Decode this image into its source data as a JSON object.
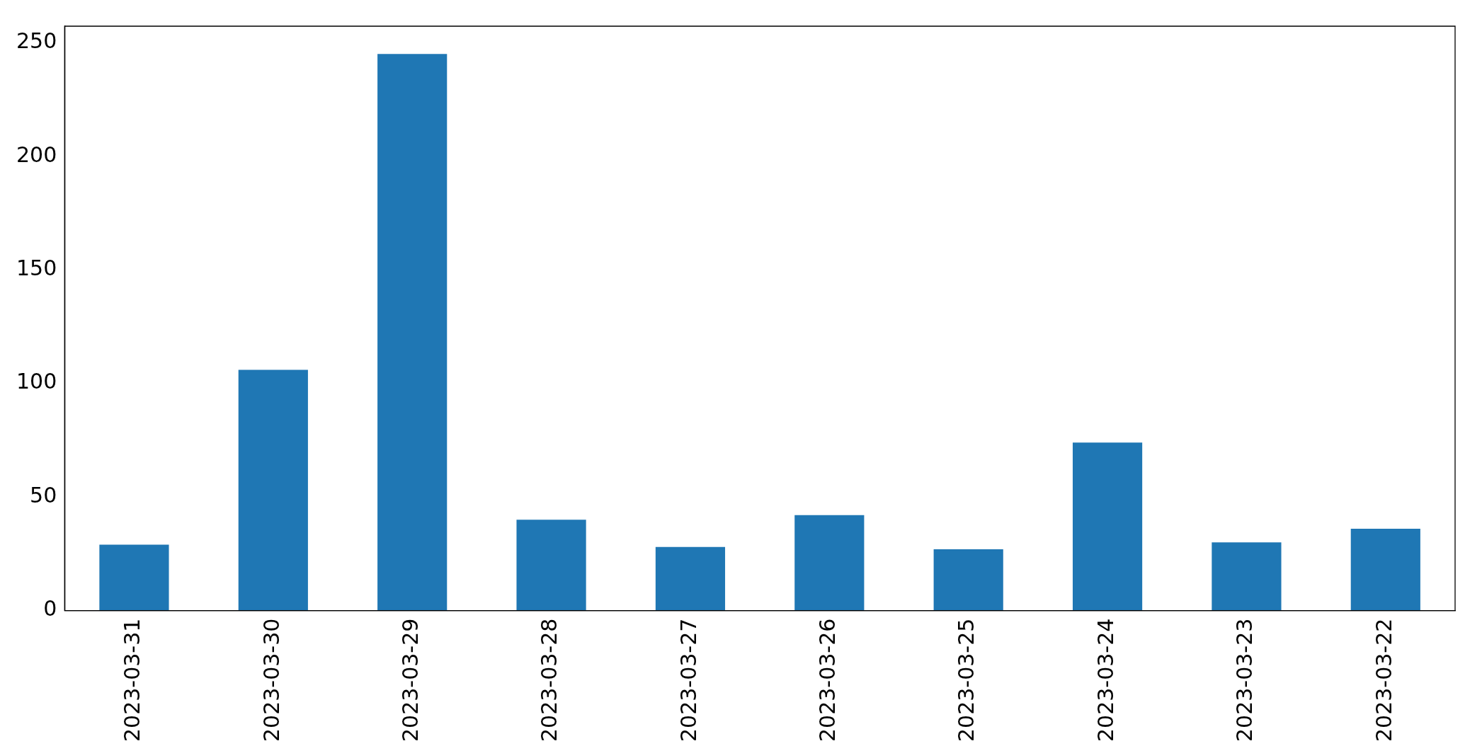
{
  "chart_data": {
    "type": "bar",
    "categories": [
      "2023-03-31",
      "2023-03-30",
      "2023-03-29",
      "2023-03-28",
      "2023-03-27",
      "2023-03-26",
      "2023-03-25",
      "2023-03-24",
      "2023-03-23",
      "2023-03-22"
    ],
    "values": [
      29,
      106,
      245,
      40,
      28,
      42,
      27,
      74,
      30,
      36
    ],
    "color": "#1f77b4",
    "ylim": [
      0,
      257.25
    ],
    "yticks": [
      0,
      50,
      100,
      150,
      200,
      250
    ],
    "grid": false,
    "legend": false
  }
}
